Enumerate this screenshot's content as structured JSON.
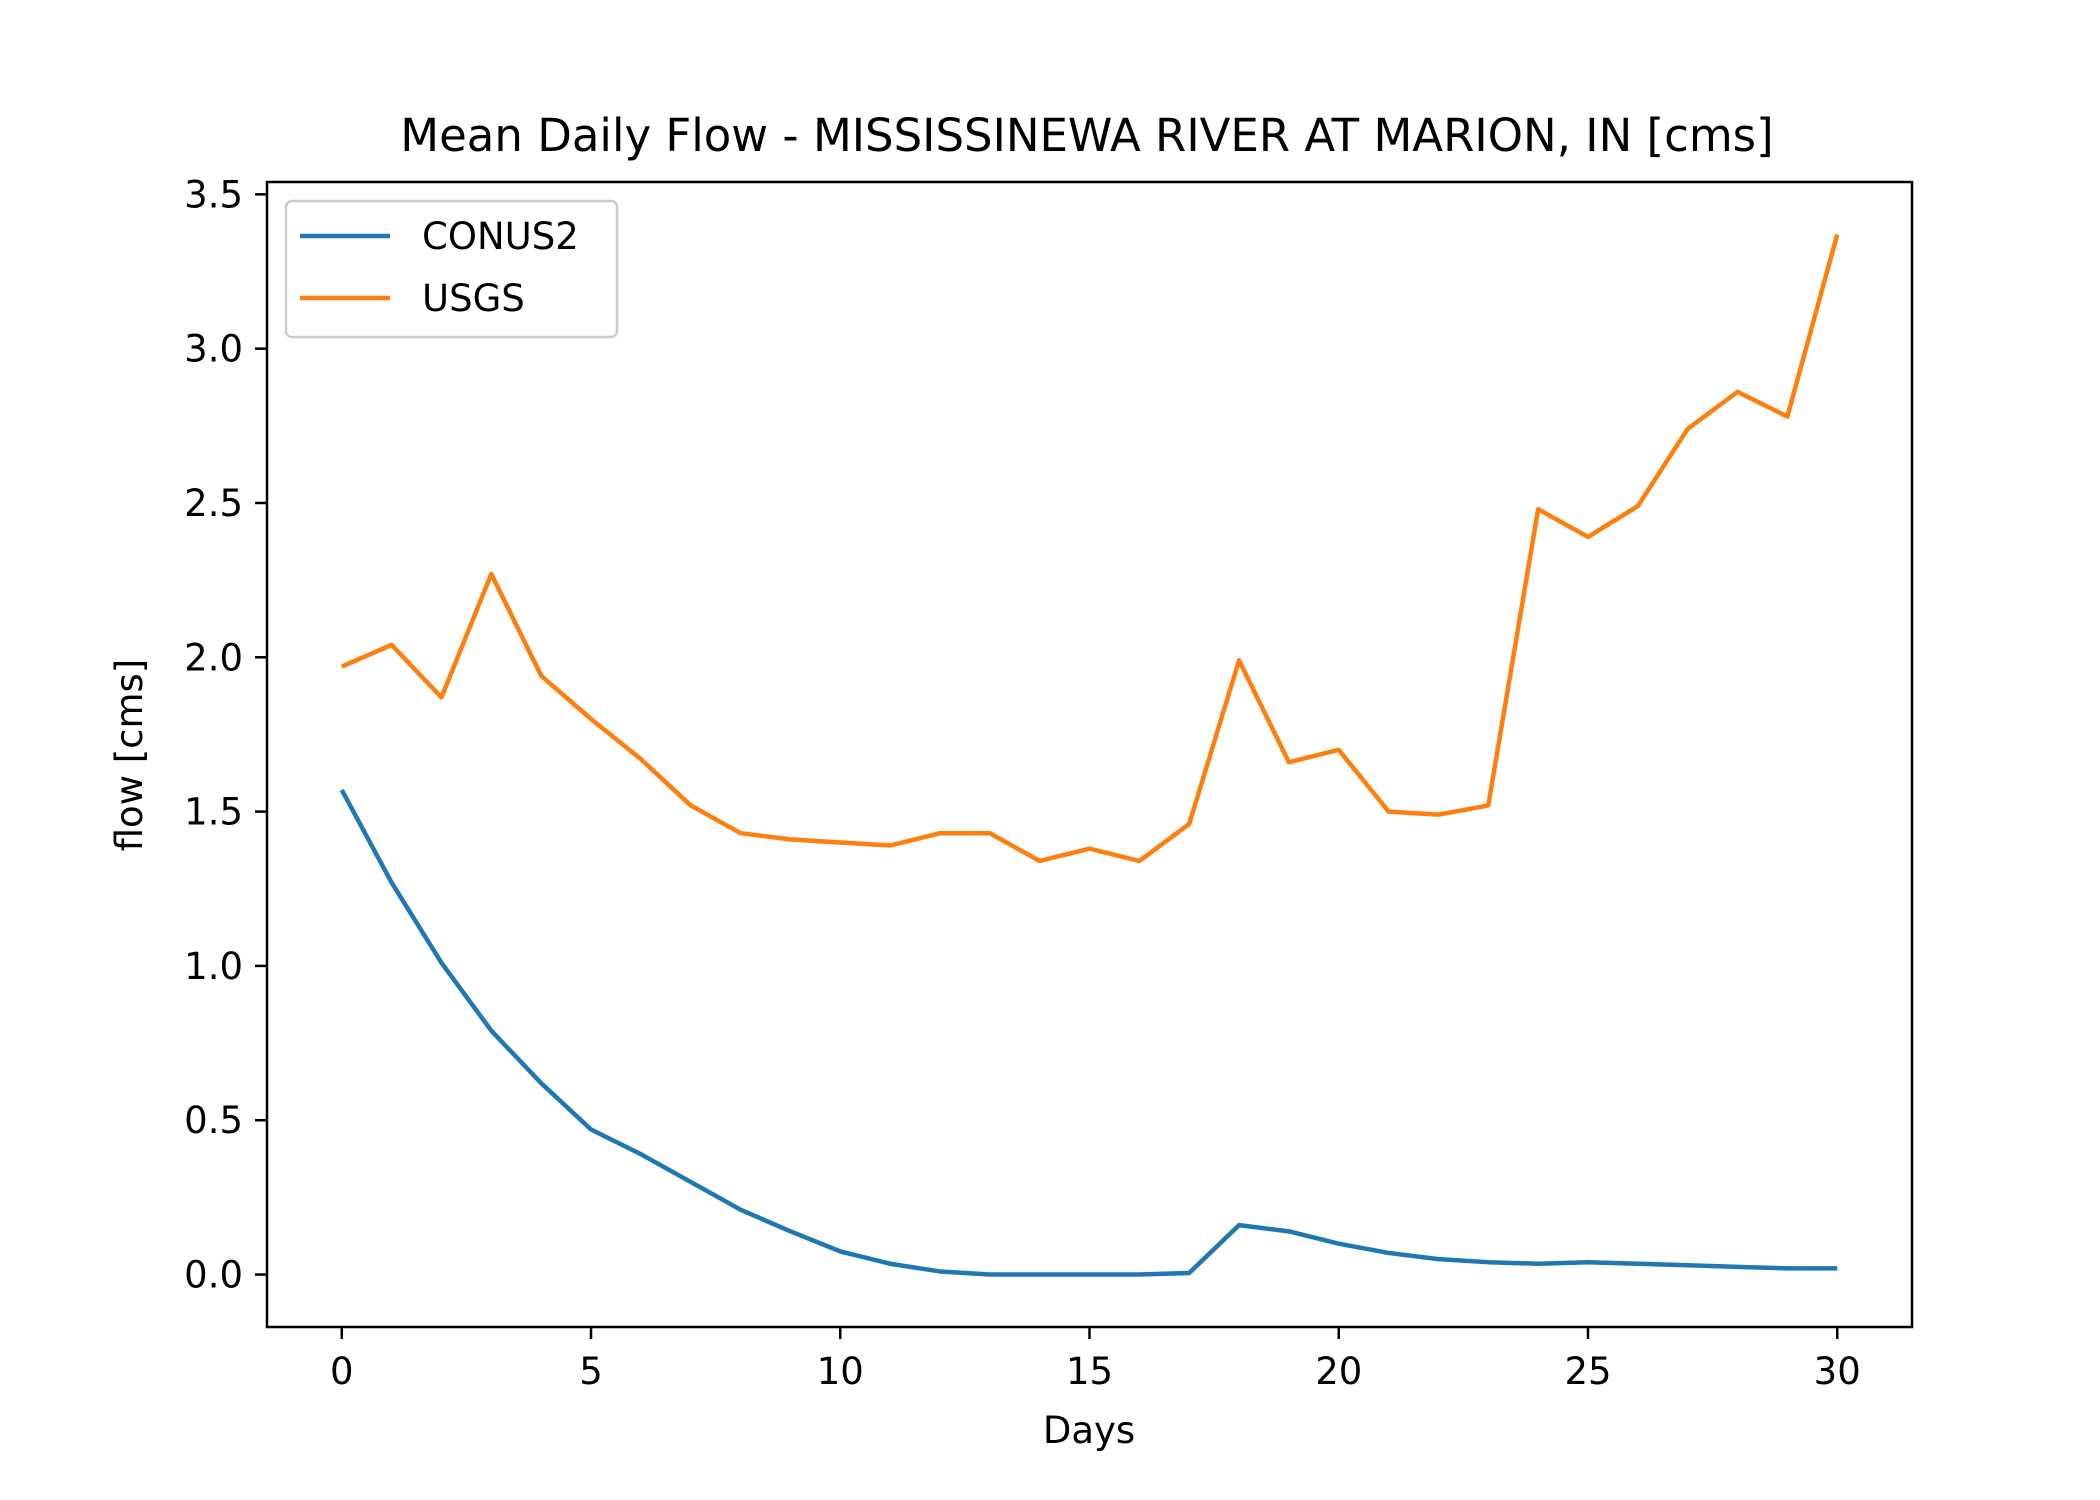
{
  "chart_data": {
    "type": "line",
    "title": "Mean Daily Flow - MISSISSINEWA RIVER AT MARION, IN [cms]",
    "xlabel": "Days",
    "ylabel": "flow [cms]",
    "xlim": [
      -1.5,
      31.5
    ],
    "ylim": [
      -0.17,
      3.54
    ],
    "xticks": [
      0,
      5,
      10,
      15,
      20,
      25,
      30
    ],
    "xtick_labels": [
      "0",
      "5",
      "10",
      "15",
      "20",
      "25",
      "30"
    ],
    "yticks": [
      0.0,
      0.5,
      1.0,
      1.5,
      2.0,
      2.5,
      3.0,
      3.5
    ],
    "ytick_labels": [
      "0.0",
      "0.5",
      "1.0",
      "1.5",
      "2.0",
      "2.5",
      "3.0",
      "3.5"
    ],
    "grid": false,
    "legend_position": "top-left",
    "x": [
      0,
      1,
      2,
      3,
      4,
      5,
      6,
      7,
      8,
      9,
      10,
      11,
      12,
      13,
      14,
      15,
      16,
      17,
      18,
      19,
      20,
      21,
      22,
      23,
      24,
      25,
      26,
      27,
      28,
      29,
      30
    ],
    "series": [
      {
        "name": "CONUS2",
        "color": "#1f77b4",
        "values": [
          1.57,
          1.27,
          1.01,
          0.79,
          0.62,
          0.47,
          0.39,
          0.3,
          0.21,
          0.14,
          0.075,
          0.035,
          0.01,
          0.0,
          0.0,
          0.0,
          0.0,
          0.005,
          0.16,
          0.14,
          0.1,
          0.07,
          0.05,
          0.04,
          0.035,
          0.04,
          0.035,
          0.03,
          0.025,
          0.02,
          0.02
        ]
      },
      {
        "name": "USGS",
        "color": "#ff7f0e",
        "values": [
          1.97,
          2.04,
          1.87,
          2.27,
          1.94,
          1.8,
          1.67,
          1.52,
          1.43,
          1.41,
          1.4,
          1.39,
          1.43,
          1.43,
          1.34,
          1.38,
          1.34,
          1.46,
          1.99,
          1.66,
          1.7,
          1.5,
          1.49,
          1.52,
          2.48,
          2.39,
          2.49,
          2.74,
          2.86,
          2.78,
          3.37
        ]
      }
    ]
  }
}
